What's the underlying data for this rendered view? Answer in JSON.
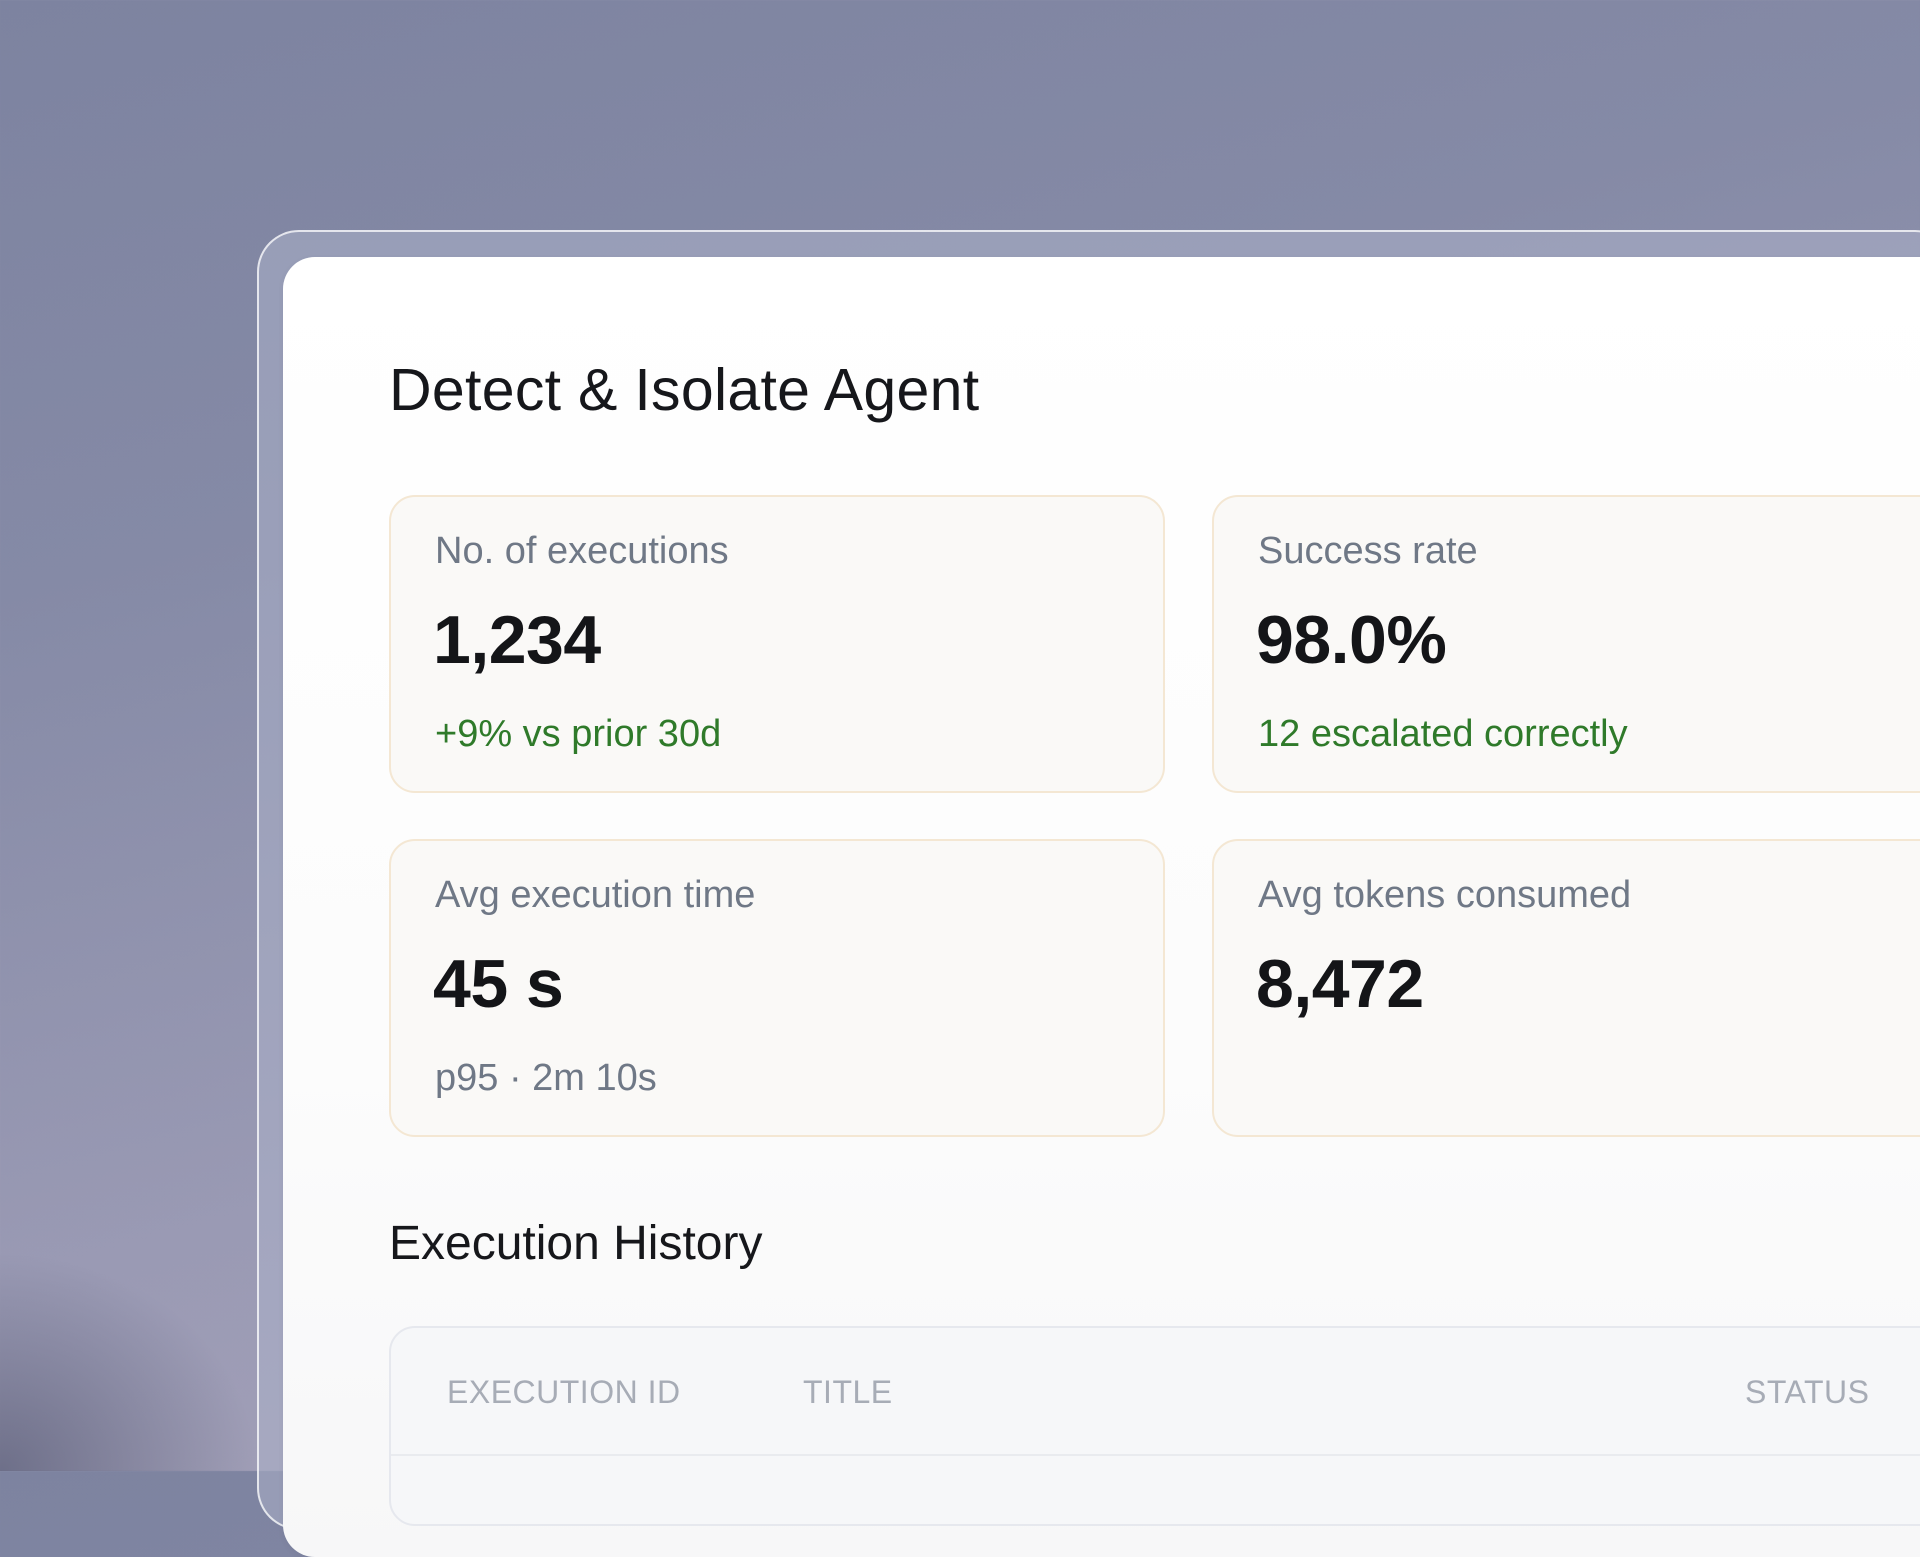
{
  "page": {
    "title": "Detect & Isolate Agent"
  },
  "stats": [
    {
      "label": "No. of executions",
      "value": "1,234",
      "sub": "+9% vs prior 30d",
      "sub_tone": "positive"
    },
    {
      "label": "Success rate",
      "value": "98.0%",
      "sub": "12 escalated correctly",
      "sub_tone": "positive"
    },
    {
      "label": "Avg execution time",
      "value": "45 s",
      "sub": "p95 · 2m 10s",
      "sub_tone": "neutral"
    },
    {
      "label": "Avg tokens consumed",
      "value": "8,472",
      "sub": "",
      "sub_tone": "neutral"
    }
  ],
  "history": {
    "title": "Execution History",
    "columns": [
      "EXECUTION ID",
      "TITLE",
      "STATUS"
    ]
  },
  "colors": {
    "positive": "#2f7a2a",
    "neutral": "#6f7886",
    "card_border": "#f4e7d3",
    "card_background": "#faf9f7"
  }
}
